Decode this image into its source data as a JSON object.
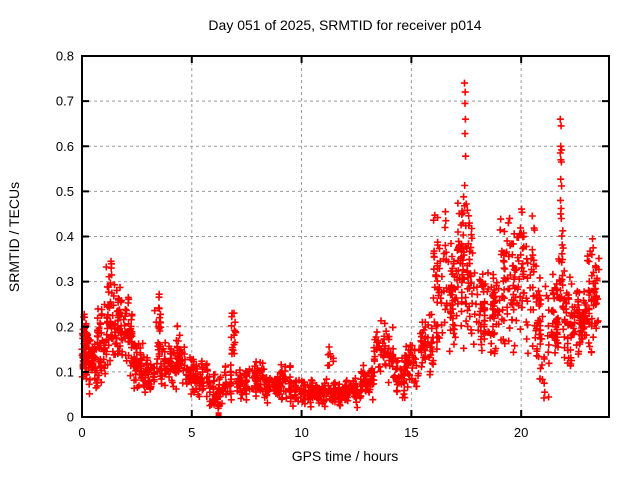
{
  "chart_data": {
    "type": "scatter",
    "title": "Day 051 of 2025, SRMTID for receiver p014",
    "xlabel": "GPS time / hours",
    "ylabel": "SRMTID / TECUs",
    "xlim": [
      0,
      24
    ],
    "ylim": [
      0,
      0.8
    ],
    "xticks": [
      0,
      5,
      10,
      15,
      20
    ],
    "xticklabels": [
      "0",
      "5",
      "10",
      "15",
      "20"
    ],
    "yticks": [
      0,
      0.1,
      0.2,
      0.3,
      0.4,
      0.5,
      0.6,
      0.7,
      0.8
    ],
    "yticklabels": [
      "0",
      "0.1",
      "0.2",
      "0.3",
      "0.4",
      "0.5",
      "0.6",
      "0.7",
      "0.8"
    ],
    "grid": true,
    "grid_color": "#9b9b9b",
    "axis_color": "#000000",
    "marker": "plus",
    "marker_color": "#ff0000",
    "bins_format": "[hour_start, hour_end, value_min, value_max, point_count]",
    "density_bins": [
      [
        0.0,
        0.3,
        0.07,
        0.25,
        60
      ],
      [
        0.3,
        0.7,
        0.05,
        0.18,
        45
      ],
      [
        0.7,
        1.1,
        0.06,
        0.27,
        45
      ],
      [
        1.1,
        1.4,
        0.08,
        0.345,
        35
      ],
      [
        1.4,
        1.8,
        0.1,
        0.3,
        50
      ],
      [
        1.8,
        2.3,
        0.08,
        0.28,
        55
      ],
      [
        2.3,
        2.8,
        0.05,
        0.18,
        45
      ],
      [
        2.8,
        3.3,
        0.04,
        0.15,
        40
      ],
      [
        3.3,
        3.6,
        0.07,
        0.3,
        30
      ],
      [
        3.6,
        4.2,
        0.05,
        0.18,
        45
      ],
      [
        4.2,
        4.6,
        0.05,
        0.21,
        35
      ],
      [
        4.6,
        5.2,
        0.04,
        0.16,
        40
      ],
      [
        5.2,
        5.8,
        0.03,
        0.13,
        40
      ],
      [
        5.8,
        6.5,
        0.015,
        0.1,
        45
      ],
      [
        6.5,
        6.8,
        0.03,
        0.12,
        25
      ],
      [
        6.8,
        7.0,
        0.1,
        0.27,
        18
      ],
      [
        7.0,
        7.6,
        0.03,
        0.12,
        40
      ],
      [
        7.6,
        8.3,
        0.04,
        0.13,
        45
      ],
      [
        8.3,
        9.0,
        0.03,
        0.1,
        45
      ],
      [
        9.0,
        9.5,
        0.03,
        0.13,
        40
      ],
      [
        9.5,
        10.5,
        0.02,
        0.09,
        65
      ],
      [
        10.5,
        11.2,
        0.02,
        0.09,
        50
      ],
      [
        11.2,
        11.45,
        0.1,
        0.16,
        8
      ],
      [
        11.2,
        12.0,
        0.02,
        0.08,
        55
      ],
      [
        12.0,
        12.7,
        0.02,
        0.09,
        50
      ],
      [
        12.7,
        13.3,
        0.03,
        0.12,
        45
      ],
      [
        13.3,
        14.2,
        0.07,
        0.22,
        60
      ],
      [
        14.2,
        14.7,
        0.03,
        0.15,
        40
      ],
      [
        14.7,
        15.4,
        0.05,
        0.17,
        45
      ],
      [
        15.4,
        16.0,
        0.08,
        0.25,
        45
      ],
      [
        16.0,
        16.6,
        0.1,
        0.46,
        50
      ],
      [
        16.6,
        17.1,
        0.12,
        0.42,
        50
      ],
      [
        17.1,
        17.4,
        0.15,
        0.52,
        40
      ],
      [
        17.4,
        17.8,
        0.15,
        0.46,
        40
      ],
      [
        17.8,
        18.4,
        0.12,
        0.35,
        45
      ],
      [
        18.4,
        19.0,
        0.12,
        0.4,
        45
      ],
      [
        19.0,
        19.5,
        0.15,
        0.47,
        40
      ],
      [
        19.5,
        20.0,
        0.12,
        0.47,
        40
      ],
      [
        20.0,
        20.7,
        0.12,
        0.48,
        50
      ],
      [
        20.7,
        21.3,
        0.04,
        0.35,
        45
      ],
      [
        21.3,
        21.7,
        0.1,
        0.33,
        40
      ],
      [
        21.7,
        21.95,
        0.15,
        0.48,
        25
      ],
      [
        21.95,
        22.5,
        0.1,
        0.33,
        50
      ],
      [
        22.5,
        23.0,
        0.12,
        0.3,
        50
      ],
      [
        23.0,
        23.55,
        0.13,
        0.4,
        55
      ]
    ],
    "outlier_points": [
      [
        17.42,
        0.74
      ],
      [
        17.45,
        0.72
      ],
      [
        17.44,
        0.695
      ],
      [
        17.46,
        0.66
      ],
      [
        17.44,
        0.628
      ],
      [
        17.47,
        0.578
      ],
      [
        17.43,
        0.513
      ],
      [
        17.38,
        0.488
      ],
      [
        17.42,
        0.468
      ],
      [
        17.5,
        0.472
      ],
      [
        17.55,
        0.458
      ],
      [
        17.35,
        0.452
      ],
      [
        21.78,
        0.66
      ],
      [
        21.82,
        0.645
      ],
      [
        21.8,
        0.6
      ],
      [
        21.84,
        0.592
      ],
      [
        21.78,
        0.585
      ],
      [
        21.81,
        0.57
      ],
      [
        21.83,
        0.565
      ],
      [
        21.8,
        0.527
      ],
      [
        21.84,
        0.512
      ],
      [
        21.79,
        0.48
      ],
      [
        21.82,
        0.462
      ],
      [
        21.8,
        0.45
      ],
      [
        16.55,
        0.455
      ],
      [
        16.57,
        0.435
      ],
      [
        16.53,
        0.42
      ],
      [
        23.25,
        0.395
      ],
      [
        23.28,
        0.375
      ],
      [
        23.22,
        0.36
      ],
      [
        1.32,
        0.345
      ],
      [
        1.33,
        0.33
      ],
      [
        1.35,
        0.315
      ],
      [
        21.05,
        0.075
      ],
      [
        21.07,
        0.055
      ],
      [
        21.04,
        0.042
      ]
    ],
    "square_points": [
      [
        0.03,
        0.112
      ],
      [
        6.22,
        0.004
      ]
    ]
  }
}
